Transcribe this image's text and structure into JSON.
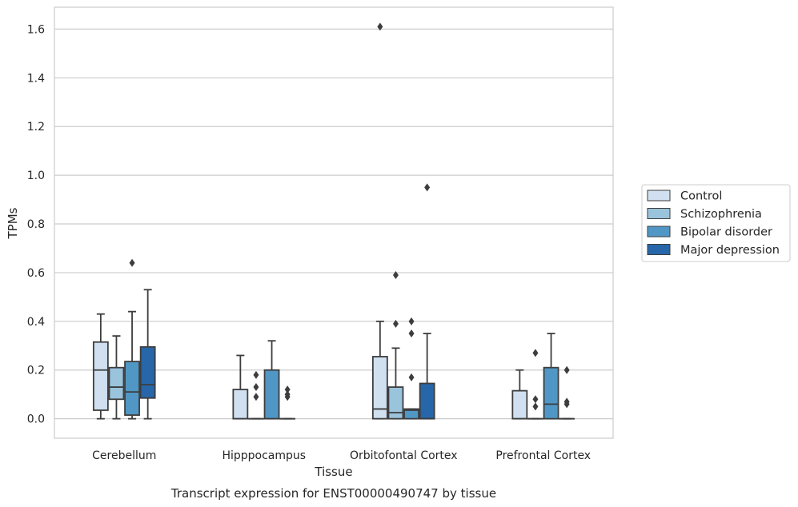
{
  "chart_data": {
    "type": "box",
    "caption": "Transcript expression for ENST00000490747 by tissue",
    "xlabel": "Tissue",
    "ylabel": "TPMs",
    "ylim": [
      -0.08,
      1.69
    ],
    "yticks": [
      "0.0",
      "0.2",
      "0.4",
      "0.6",
      "0.8",
      "1.0",
      "1.2",
      "1.4",
      "1.6"
    ],
    "grid": "horizontal",
    "legend_position": "right",
    "categories": [
      "Cerebellum",
      "Hipppocampus",
      "Orbitofontal Cortex",
      "Prefrontal Cortex"
    ],
    "series": [
      {
        "name": "Control",
        "color": "#d0e0f0",
        "boxes": [
          {
            "whislo": 0.0,
            "q1": 0.035,
            "med": 0.2,
            "q3": 0.315,
            "whishi": 0.43,
            "fliers": []
          },
          {
            "whislo": 0.0,
            "q1": 0.0,
            "med": 0.0,
            "q3": 0.12,
            "whishi": 0.26,
            "fliers": []
          },
          {
            "whislo": 0.0,
            "q1": 0.0,
            "med": 0.04,
            "q3": 0.255,
            "whishi": 0.4,
            "fliers": [
              1.61
            ]
          },
          {
            "whislo": 0.0,
            "q1": 0.0,
            "med": 0.0,
            "q3": 0.115,
            "whishi": 0.2,
            "fliers": []
          }
        ]
      },
      {
        "name": "Schizophrenia",
        "color": "#9ac3dc",
        "boxes": [
          {
            "whislo": 0.0,
            "q1": 0.08,
            "med": 0.13,
            "q3": 0.21,
            "whishi": 0.34,
            "fliers": []
          },
          {
            "whislo": 0.0,
            "q1": 0.0,
            "med": 0.0,
            "q3": 0.0,
            "whishi": 0.0,
            "fliers": [
              0.09,
              0.13,
              0.18
            ]
          },
          {
            "whislo": 0.0,
            "q1": 0.0,
            "med": 0.025,
            "q3": 0.13,
            "whishi": 0.29,
            "fliers": [
              0.39,
              0.59
            ]
          },
          {
            "whislo": 0.0,
            "q1": 0.0,
            "med": 0.0,
            "q3": 0.0,
            "whishi": 0.0,
            "fliers": [
              0.05,
              0.08,
              0.27
            ]
          }
        ]
      },
      {
        "name": "Bipolar disorder",
        "color": "#5097c5",
        "boxes": [
          {
            "whislo": 0.0,
            "q1": 0.015,
            "med": 0.11,
            "q3": 0.235,
            "whishi": 0.44,
            "fliers": [
              0.64
            ]
          },
          {
            "whislo": 0.0,
            "q1": 0.0,
            "med": 0.0,
            "q3": 0.2,
            "whishi": 0.32,
            "fliers": []
          },
          {
            "whislo": 0.0,
            "q1": 0.0,
            "med": 0.035,
            "q3": 0.04,
            "whishi": 0.04,
            "fliers": [
              0.17,
              0.35,
              0.4
            ]
          },
          {
            "whislo": 0.0,
            "q1": 0.0,
            "med": 0.06,
            "q3": 0.21,
            "whishi": 0.35,
            "fliers": []
          }
        ]
      },
      {
        "name": "Major depression",
        "color": "#2766a8",
        "boxes": [
          {
            "whislo": 0.0,
            "q1": 0.085,
            "med": 0.14,
            "q3": 0.295,
            "whishi": 0.53,
            "fliers": []
          },
          {
            "whislo": 0.0,
            "q1": 0.0,
            "med": 0.0,
            "q3": 0.0,
            "whishi": 0.0,
            "fliers": [
              0.09,
              0.1,
              0.12
            ]
          },
          {
            "whislo": 0.0,
            "q1": 0.0,
            "med": 0.0,
            "q3": 0.145,
            "whishi": 0.35,
            "fliers": [
              0.95
            ]
          },
          {
            "whislo": 0.0,
            "q1": 0.0,
            "med": 0.0,
            "q3": 0.0,
            "whishi": 0.0,
            "fliers": [
              0.06,
              0.07,
              0.2
            ]
          }
        ]
      }
    ]
  }
}
